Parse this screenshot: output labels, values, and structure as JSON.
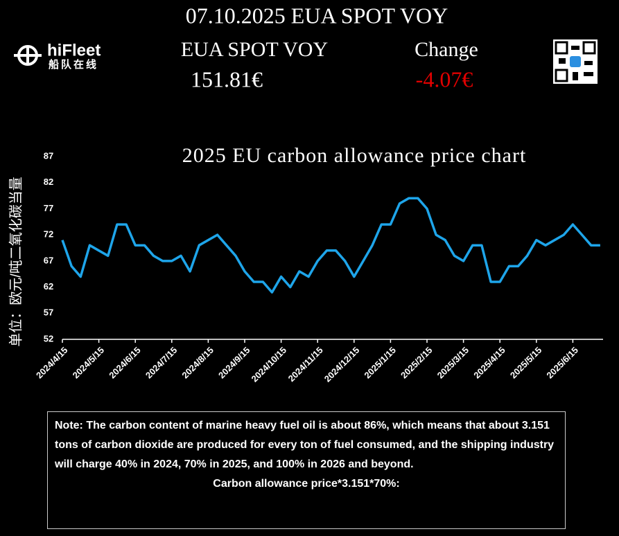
{
  "header": {
    "title": "07.10.2025 EUA SPOT VOY",
    "logo": "hiFleet",
    "logo_sub": "船队在线",
    "label_price": "EUA SPOT VOY",
    "label_change": "Change",
    "price": "151.81€",
    "change": "-4.07€"
  },
  "chart_data": {
    "type": "line",
    "title": "2025 EU carbon allowance price chart",
    "y_label": "单位：欧元/吨二氧化碳当量",
    "categories": [
      "2024/4/15",
      null,
      null,
      null,
      "2024/5/15",
      null,
      null,
      null,
      "2024/6/15",
      null,
      null,
      null,
      "2024/7/15",
      null,
      null,
      null,
      "2024/8/15",
      null,
      null,
      null,
      "2024/9/15",
      null,
      null,
      null,
      "2024/10/15",
      null,
      null,
      null,
      "2024/11/15",
      null,
      null,
      null,
      "2024/12/15",
      null,
      null,
      null,
      "2025/1/15",
      null,
      null,
      null,
      "2025/2/15",
      null,
      null,
      null,
      "2025/3/15",
      null,
      null,
      null,
      "2025/4/15",
      null,
      null,
      null,
      "2025/5/15",
      null,
      null,
      null,
      "2025/6/15",
      null,
      null,
      null
    ],
    "values": [
      71,
      66,
      64,
      70,
      69,
      68,
      74,
      74,
      70,
      70,
      68,
      67,
      67,
      68,
      65,
      70,
      71,
      72,
      70,
      68,
      65,
      63,
      63,
      61,
      64,
      62,
      65,
      64,
      67,
      69,
      69,
      67,
      64,
      67,
      70,
      74,
      74,
      78,
      79,
      79,
      77,
      72,
      71,
      68,
      67,
      70,
      70,
      63,
      63,
      66,
      66,
      68,
      71,
      70,
      71,
      72,
      74,
      72,
      70,
      70
    ],
    "color": "#1ea5ea",
    "ylim": [
      52,
      87
    ],
    "yticks": [
      52,
      57,
      62,
      67,
      72,
      77,
      82,
      87
    ]
  },
  "note": {
    "text": "Note: The carbon content of marine heavy fuel oil is about 86%, which means that about 3.151 tons of carbon dioxide are produced for every ton of fuel consumed, and the shipping industry will charge 40% in 2024, 70% in 2025, and 100% in 2026 and beyond.",
    "formula": "Carbon allowance price*3.151*70%:"
  }
}
